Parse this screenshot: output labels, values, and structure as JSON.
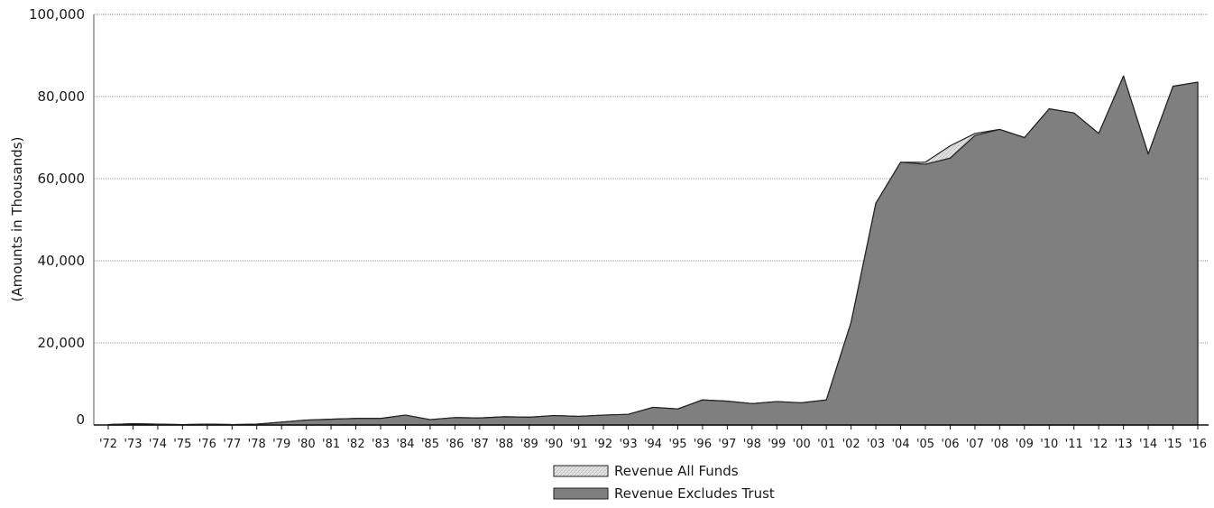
{
  "chart_data": {
    "type": "area",
    "title": "",
    "xlabel": "",
    "ylabel": "(Amounts in Thousands)",
    "ylim": [
      0,
      100000
    ],
    "yticks": [
      0,
      20000,
      40000,
      60000,
      80000,
      100000
    ],
    "ytick_labels": [
      "0",
      "20,000",
      "40,000",
      "60,000",
      "80,000",
      "100,000"
    ],
    "grid": true,
    "legend_position": "bottom-center",
    "categories": [
      "'72",
      "'73",
      "'74",
      "'75",
      "'76",
      "'77",
      "'78",
      "'79",
      "'80",
      "'81",
      "'82",
      "'83",
      "'84",
      "'85",
      "'86",
      "'87",
      "'88",
      "'89",
      "'90",
      "'91",
      "'92",
      "'93",
      "'94",
      "'95",
      "'96",
      "'97",
      "'98",
      "'99",
      "'00",
      "'01",
      "'02",
      "'03",
      "'04",
      "'05",
      "'06",
      "'07",
      "'08",
      "'09",
      "'10",
      "'11",
      "'12",
      "'13",
      "'14",
      "'15",
      "'16"
    ],
    "series": [
      {
        "name": "Revenue All Funds",
        "color": "#d8d8d8",
        "values": [
          100,
          300,
          200,
          100,
          200,
          100,
          200,
          700,
          1200,
          1400,
          1600,
          1600,
          2400,
          1300,
          1800,
          1700,
          2000,
          1900,
          2300,
          2100,
          2400,
          2600,
          4300,
          3900,
          6100,
          5800,
          5200,
          5700,
          5400,
          6100,
          25000,
          54000,
          64000,
          64000,
          68000,
          71000,
          72000,
          70000,
          77000,
          76000,
          71000,
          85000,
          66000,
          82500,
          83500
        ]
      },
      {
        "name": "Revenue Excludes Trust",
        "color": "#7f7f7f",
        "values": [
          100,
          300,
          200,
          100,
          200,
          100,
          200,
          700,
          1200,
          1400,
          1600,
          1600,
          2400,
          1300,
          1800,
          1700,
          2000,
          1900,
          2300,
          2100,
          2400,
          2600,
          4300,
          3900,
          6100,
          5800,
          5200,
          5700,
          5400,
          6100,
          25000,
          54000,
          64000,
          63500,
          65000,
          70500,
          72000,
          70000,
          77000,
          76000,
          71000,
          85000,
          66000,
          82500,
          83500
        ]
      }
    ]
  }
}
